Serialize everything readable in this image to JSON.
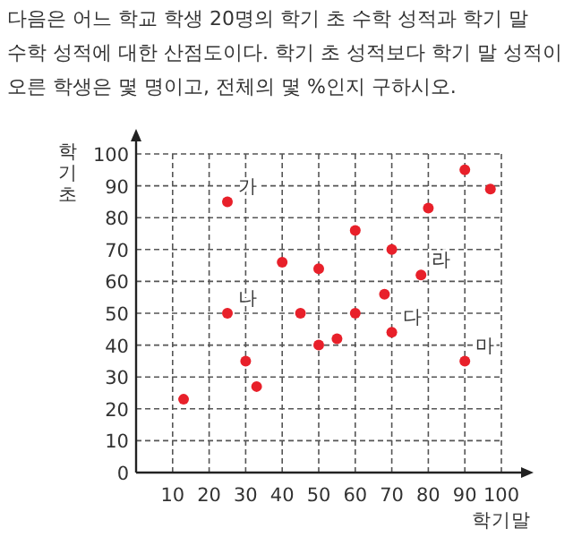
{
  "chart_data": {
    "type": "scatter",
    "title": "다음은 어느 학교 학생 20명의 학기 초 수학 성적과 학기 말 수학 성적에 대한 산점도이다. 학기 초 성적보다 학기 말 성적이 오른 학생은 몇 명이고, 전체의 몇 %인지 구하시오.",
    "xlabel": "학기말",
    "ylabel": "학기초",
    "x": [
      13,
      25,
      25,
      30,
      33,
      40,
      45,
      50,
      50,
      55,
      60,
      60,
      68,
      70,
      70,
      78,
      80,
      90,
      90,
      97
    ],
    "values": [
      23,
      85,
      50,
      35,
      27,
      66,
      50,
      64,
      40,
      42,
      76,
      50,
      56,
      70,
      44,
      62,
      83,
      95,
      35,
      89
    ],
    "color": "#e8202a",
    "marker": "circle",
    "grid": true,
    "xlim": [
      0,
      100
    ],
    "ylim": [
      0,
      100
    ],
    "xticks": [
      10,
      20,
      30,
      40,
      50,
      60,
      70,
      80,
      90,
      100
    ],
    "yticks": [
      0,
      10,
      20,
      30,
      40,
      50,
      60,
      70,
      80,
      90,
      100
    ],
    "annotations": [
      {
        "text": "가",
        "x": 25,
        "y": 85
      },
      {
        "text": "나",
        "x": 25,
        "y": 50
      },
      {
        "text": "다",
        "x": 70,
        "y": 44
      },
      {
        "text": "라",
        "x": 78,
        "y": 62
      },
      {
        "text": "마",
        "x": 90,
        "y": 35
      }
    ]
  }
}
